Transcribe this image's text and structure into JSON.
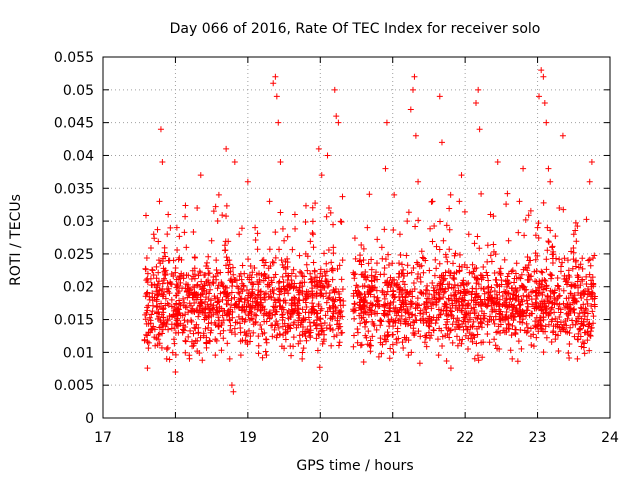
{
  "chart_data": {
    "type": "scatter",
    "title": "Day 066 of 2016, Rate Of TEC Index for receiver solo",
    "xlabel": "GPS time / hours",
    "ylabel": "ROTI / TECUs",
    "xlim": [
      17,
      24
    ],
    "ylim": [
      0,
      0.055
    ],
    "xticks": [
      17,
      18,
      19,
      20,
      21,
      22,
      23,
      24
    ],
    "xtick_labels": [
      "17",
      "18",
      "19",
      "20",
      "21",
      "22",
      "23",
      "24"
    ],
    "yticks": [
      0,
      0.005,
      0.01,
      0.015,
      0.02,
      0.025,
      0.03,
      0.035,
      0.04,
      0.045,
      0.05,
      0.055
    ],
    "ytick_labels": [
      "0",
      "0.005",
      "0.01",
      "0.015",
      "0.02",
      "0.025",
      "0.03",
      "0.035",
      "0.04",
      "0.045",
      "0.05",
      "0.055"
    ],
    "grid": true,
    "marker": "+",
    "color": "#ff0000",
    "series": [
      {
        "name": "ROTI",
        "points": [
          [
            17.6,
            0.016
          ],
          [
            17.62,
            0.022
          ],
          [
            17.65,
            0.013
          ],
          [
            17.68,
            0.019
          ],
          [
            17.7,
            0.028
          ],
          [
            17.72,
            0.011
          ],
          [
            17.75,
            0.017
          ],
          [
            17.78,
            0.033
          ],
          [
            17.8,
            0.044
          ],
          [
            17.82,
            0.039
          ],
          [
            17.84,
            0.021
          ],
          [
            17.86,
            0.014
          ],
          [
            17.88,
            0.009
          ],
          [
            17.9,
            0.031
          ],
          [
            17.92,
            0.024
          ],
          [
            17.95,
            0.018
          ],
          [
            17.98,
            0.012
          ],
          [
            18.0,
            0.007
          ],
          [
            18.02,
            0.029
          ],
          [
            18.05,
            0.016
          ],
          [
            18.08,
            0.022
          ],
          [
            18.1,
            0.013
          ],
          [
            18.15,
            0.026
          ],
          [
            18.2,
            0.019
          ],
          [
            18.25,
            0.011
          ],
          [
            18.3,
            0.032
          ],
          [
            18.35,
            0.037
          ],
          [
            18.4,
            0.015
          ],
          [
            18.45,
            0.021
          ],
          [
            18.5,
            0.027
          ],
          [
            18.55,
            0.012
          ],
          [
            18.6,
            0.034
          ],
          [
            18.65,
            0.018
          ],
          [
            18.7,
            0.041
          ],
          [
            18.72,
            0.024
          ],
          [
            18.75,
            0.009
          ],
          [
            18.78,
            0.005
          ],
          [
            18.8,
            0.004
          ],
          [
            18.82,
            0.039
          ],
          [
            18.85,
            0.017
          ],
          [
            18.88,
            0.028
          ],
          [
            18.9,
            0.013
          ],
          [
            18.95,
            0.022
          ],
          [
            19.0,
            0.036
          ],
          [
            19.05,
            0.016
          ],
          [
            19.1,
            0.029
          ],
          [
            19.15,
            0.011
          ],
          [
            19.2,
            0.024
          ],
          [
            19.25,
            0.019
          ],
          [
            19.3,
            0.033
          ],
          [
            19.35,
            0.051
          ],
          [
            19.38,
            0.052
          ],
          [
            19.4,
            0.049
          ],
          [
            19.42,
            0.045
          ],
          [
            19.45,
            0.039
          ],
          [
            19.5,
            0.027
          ],
          [
            19.55,
            0.014
          ],
          [
            19.6,
            0.021
          ],
          [
            19.65,
            0.031
          ],
          [
            19.7,
            0.018
          ],
          [
            19.75,
            0.009
          ],
          [
            19.8,
            0.025
          ],
          [
            19.85,
            0.013
          ],
          [
            19.9,
            0.028
          ],
          [
            19.95,
            0.016
          ],
          [
            19.98,
            0.041
          ],
          [
            20.0,
            0.022
          ],
          [
            20.02,
            0.037
          ],
          [
            20.05,
            0.012
          ],
          [
            20.08,
            0.019
          ],
          [
            20.1,
            0.04
          ],
          [
            20.12,
            0.032
          ],
          [
            20.15,
            0.011
          ],
          [
            20.18,
            0.026
          ],
          [
            20.2,
            0.05
          ],
          [
            20.22,
            0.046
          ],
          [
            20.25,
            0.045
          ],
          [
            20.28,
            0.018
          ],
          [
            20.5,
            0.019
          ],
          [
            20.52,
            0.013
          ],
          [
            20.55,
            0.024
          ],
          [
            20.6,
            0.016
          ],
          [
            20.65,
            0.029
          ],
          [
            20.7,
            0.011
          ],
          [
            20.75,
            0.021
          ],
          [
            20.8,
            0.017
          ],
          [
            20.85,
            0.026
          ],
          [
            20.9,
            0.038
          ],
          [
            20.92,
            0.045
          ],
          [
            20.95,
            0.014
          ],
          [
            21.0,
            0.021
          ],
          [
            21.02,
            0.034
          ],
          [
            21.05,
            0.012
          ],
          [
            21.1,
            0.028
          ],
          [
            21.15,
            0.017
          ],
          [
            21.2,
            0.03
          ],
          [
            21.25,
            0.047
          ],
          [
            21.28,
            0.05
          ],
          [
            21.3,
            0.052
          ],
          [
            21.32,
            0.043
          ],
          [
            21.35,
            0.036
          ],
          [
            21.4,
            0.019
          ],
          [
            21.45,
            0.024
          ],
          [
            21.5,
            0.013
          ],
          [
            21.55,
            0.033
          ],
          [
            21.6,
            0.018
          ],
          [
            21.65,
            0.049
          ],
          [
            21.68,
            0.042
          ],
          [
            21.7,
            0.027
          ],
          [
            21.75,
            0.015
          ],
          [
            21.8,
            0.034
          ],
          [
            21.85,
            0.022
          ],
          [
            21.9,
            0.011
          ],
          [
            21.95,
            0.037
          ],
          [
            22.0,
            0.019
          ],
          [
            22.05,
            0.028
          ],
          [
            22.1,
            0.014
          ],
          [
            22.15,
            0.048
          ],
          [
            22.18,
            0.05
          ],
          [
            22.2,
            0.044
          ],
          [
            22.25,
            0.023
          ],
          [
            22.3,
            0.017
          ],
          [
            22.35,
            0.031
          ],
          [
            22.4,
            0.012
          ],
          [
            22.45,
            0.039
          ],
          [
            22.5,
            0.021
          ],
          [
            22.55,
            0.015
          ],
          [
            22.6,
            0.027
          ],
          [
            22.65,
            0.009
          ],
          [
            22.7,
            0.018
          ],
          [
            22.75,
            0.033
          ],
          [
            22.8,
            0.038
          ],
          [
            22.85,
            0.013
          ],
          [
            22.9,
            0.024
          ],
          [
            22.95,
            0.017
          ],
          [
            23.0,
            0.029
          ],
          [
            23.02,
            0.049
          ],
          [
            23.05,
            0.053
          ],
          [
            23.08,
            0.052
          ],
          [
            23.1,
            0.048
          ],
          [
            23.12,
            0.045
          ],
          [
            23.15,
            0.038
          ],
          [
            23.2,
            0.026
          ],
          [
            23.25,
            0.014
          ],
          [
            23.3,
            0.032
          ],
          [
            23.35,
            0.043
          ],
          [
            23.4,
            0.021
          ],
          [
            23.45,
            0.016
          ],
          [
            23.5,
            0.028
          ],
          [
            23.55,
            0.009
          ],
          [
            23.6,
            0.019
          ],
          [
            23.65,
            0.013
          ],
          [
            23.7,
            0.024
          ],
          [
            23.72,
            0.036
          ],
          [
            23.75,
            0.039
          ]
        ]
      }
    ],
    "dense_band": {
      "x_segments": [
        [
          17.57,
          20.32
        ],
        [
          20.45,
          23.8
        ]
      ],
      "y_center": 0.017,
      "y_spread": 0.006,
      "count": 2400
    }
  }
}
